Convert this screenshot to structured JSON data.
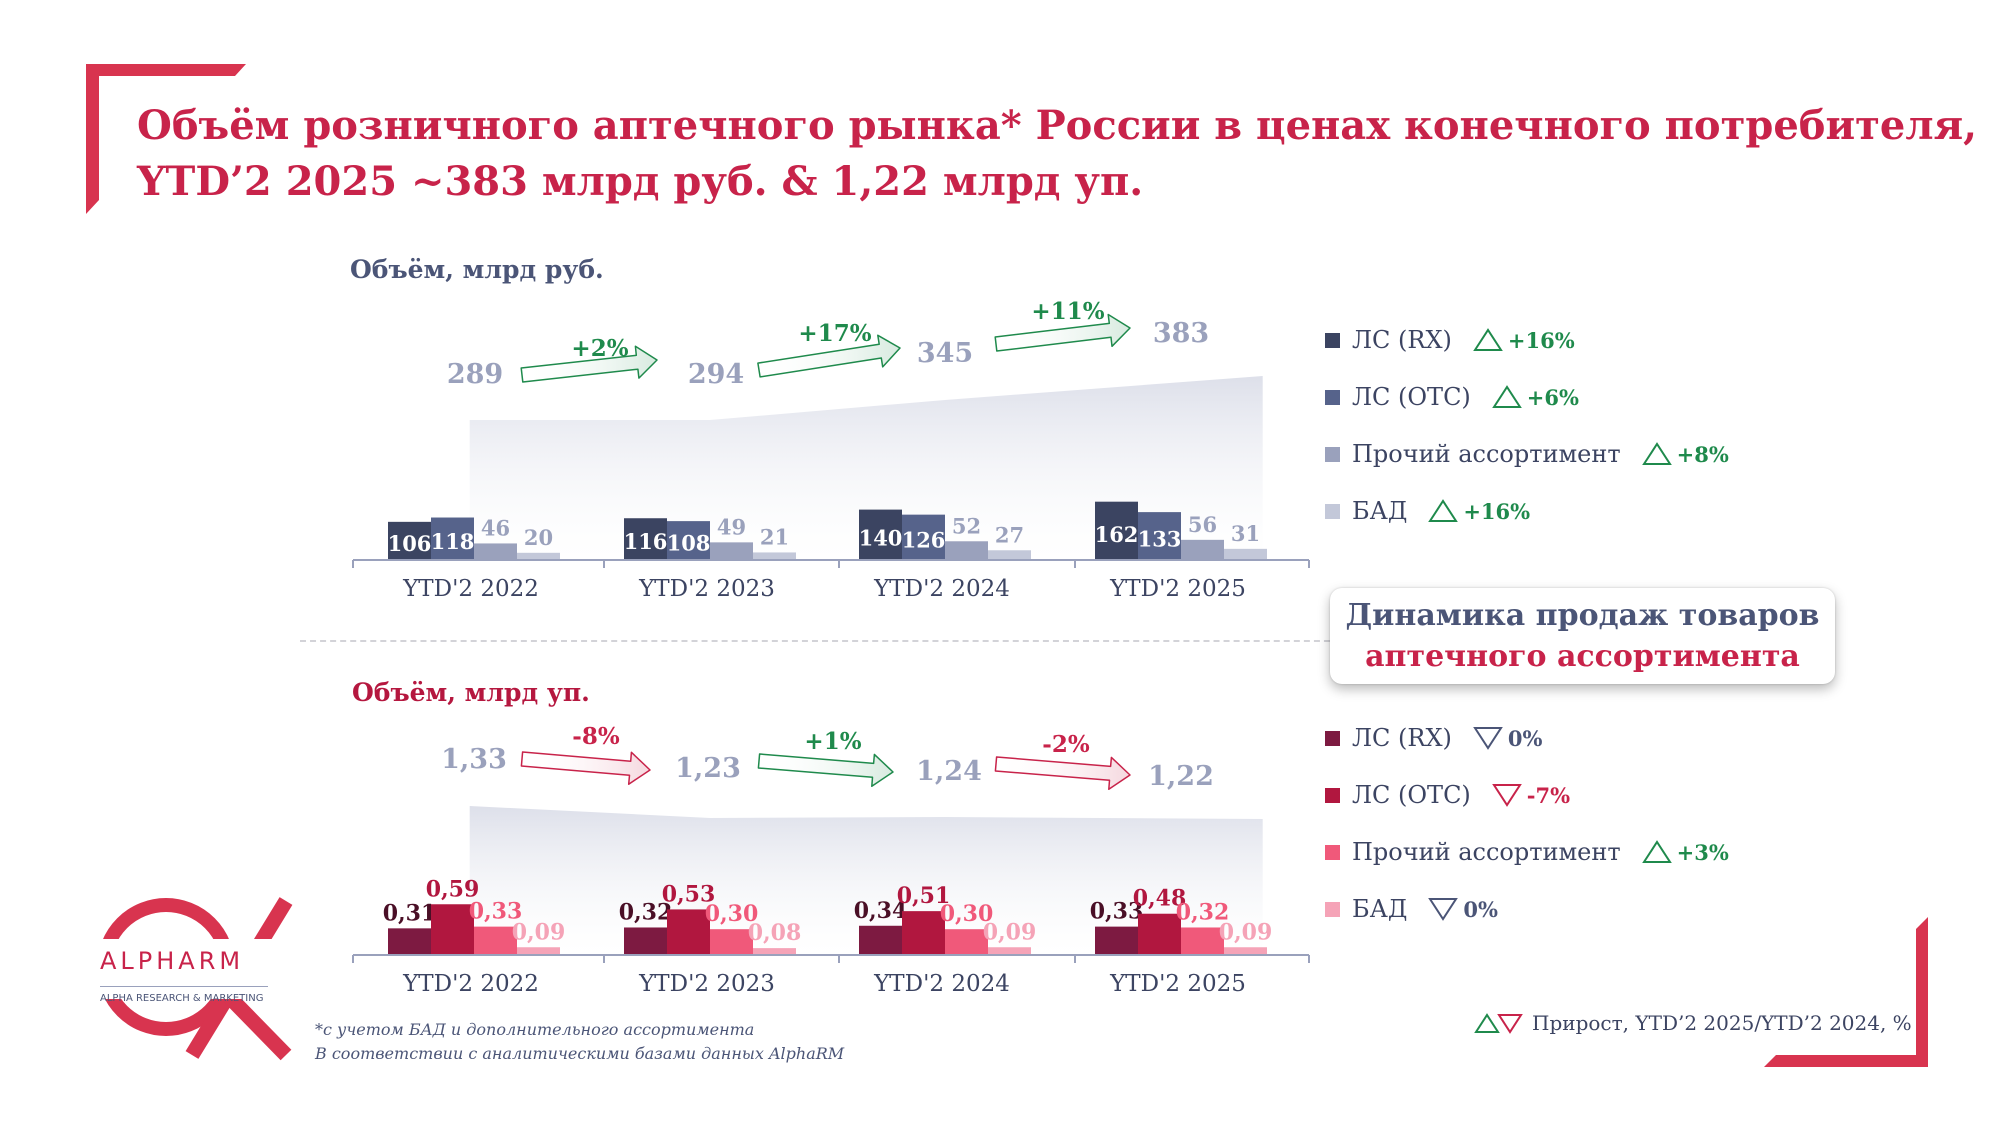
{
  "title": {
    "line1": "Объём розничного аптечного рынка* России в ценах конечного потребителя,",
    "line2": "YTD’2 2025 ~383 млрд руб. & 1,22 млрд уп."
  },
  "chart_data": [
    {
      "type": "bar",
      "title": "Объём, млрд руб.",
      "categories": [
        "YTD'2 2022",
        "YTD'2 2023",
        "YTD'2 2024",
        "YTD'2 2025"
      ],
      "series": [
        {
          "name": "ЛС (RX)",
          "values": [
            106,
            116,
            140,
            162
          ],
          "labels": [
            "106",
            "116",
            "140",
            "162"
          ],
          "color": "#3b4461"
        },
        {
          "name": "ЛС (OTC)",
          "values": [
            118,
            108,
            126,
            133
          ],
          "labels": [
            "118",
            "108",
            "126",
            "133"
          ],
          "color": "#56638b"
        },
        {
          "name": "Прочий ассортимент",
          "values": [
            46,
            49,
            52,
            56
          ],
          "labels": [
            "46",
            "49",
            "52",
            "56"
          ],
          "color": "#9aa1bc"
        },
        {
          "name": "БАД",
          "values": [
            20,
            21,
            27,
            31
          ],
          "labels": [
            "20",
            "21",
            "27",
            "31"
          ],
          "color": "#c3c8d9"
        }
      ],
      "totals": {
        "values": [
          289,
          294,
          345,
          383
        ],
        "labels": [
          "289",
          "294",
          "345",
          "383"
        ]
      },
      "growth": [
        {
          "label": "+2%",
          "direction": "up"
        },
        {
          "label": "+17%",
          "direction": "up"
        },
        {
          "label": "+11%",
          "direction": "up"
        }
      ],
      "legend_growth": [
        {
          "label": "+16%",
          "direction": "up"
        },
        {
          "label": "+6%",
          "direction": "up"
        },
        {
          "label": "+8%",
          "direction": "up"
        },
        {
          "label": "+16%",
          "direction": "up"
        }
      ],
      "ylim": [
        0,
        190
      ]
    },
    {
      "type": "bar",
      "title": "Объём, млрд уп.",
      "categories": [
        "YTD'2 2022",
        "YTD'2 2023",
        "YTD'2 2024",
        "YTD'2 2025"
      ],
      "series": [
        {
          "name": "ЛС (RX)",
          "values": [
            0.31,
            0.32,
            0.34,
            0.33
          ],
          "labels": [
            "0,31",
            "0,32",
            "0,34",
            "0,33"
          ],
          "color": "#7d1a41"
        },
        {
          "name": "ЛС (OTC)",
          "values": [
            0.59,
            0.53,
            0.51,
            0.48
          ],
          "labels": [
            "0,59",
            "0,53",
            "0,51",
            "0,48"
          ],
          "color": "#b1173f"
        },
        {
          "name": "Прочий ассортимент",
          "values": [
            0.33,
            0.3,
            0.3,
            0.32
          ],
          "labels": [
            "0,33",
            "0,30",
            "0,30",
            "0,32"
          ],
          "color": "#f0597a"
        },
        {
          "name": "БАД",
          "values": [
            0.09,
            0.08,
            0.09,
            0.09
          ],
          "labels": [
            "0,09",
            "0,08",
            "0,09",
            "0,09"
          ],
          "color": "#f5a3b7"
        }
      ],
      "totals": {
        "values": [
          1.33,
          1.23,
          1.24,
          1.22
        ],
        "labels": [
          "1,33",
          "1,23",
          "1,24",
          "1,22"
        ]
      },
      "growth": [
        {
          "label": "-8%",
          "direction": "down"
        },
        {
          "label": "+1%",
          "direction": "up"
        },
        {
          "label": "-2%",
          "direction": "down"
        }
      ],
      "legend_growth": [
        {
          "label": "0%",
          "direction": "flat"
        },
        {
          "label": "-7%",
          "direction": "down"
        },
        {
          "label": "+3%",
          "direction": "up"
        },
        {
          "label": "0%",
          "direction": "flat"
        }
      ],
      "ylim": [
        0,
        0.75
      ]
    }
  ],
  "callout": {
    "line1": "Динамика продаж товаров",
    "line2": "аптечного ассортимента"
  },
  "footnote": {
    "line1": "*с учетом БАД и дополнительного ассортимента",
    "line2": "В соответствии с аналитическими базами данных AlphaRM"
  },
  "growth_note": "Прирост, YTD’2 2025/YTD’2 2024, %",
  "logo": {
    "name": "ALPHARM",
    "subtitle": "ALPHA RESEARCH & MARKETING"
  },
  "colors": {
    "brand": "#c8234a",
    "navy": "#4b5577",
    "up": "#1f8a4c",
    "down": "#c8234a",
    "flat": "#4b5577",
    "total_text": "#9aa1bc"
  }
}
